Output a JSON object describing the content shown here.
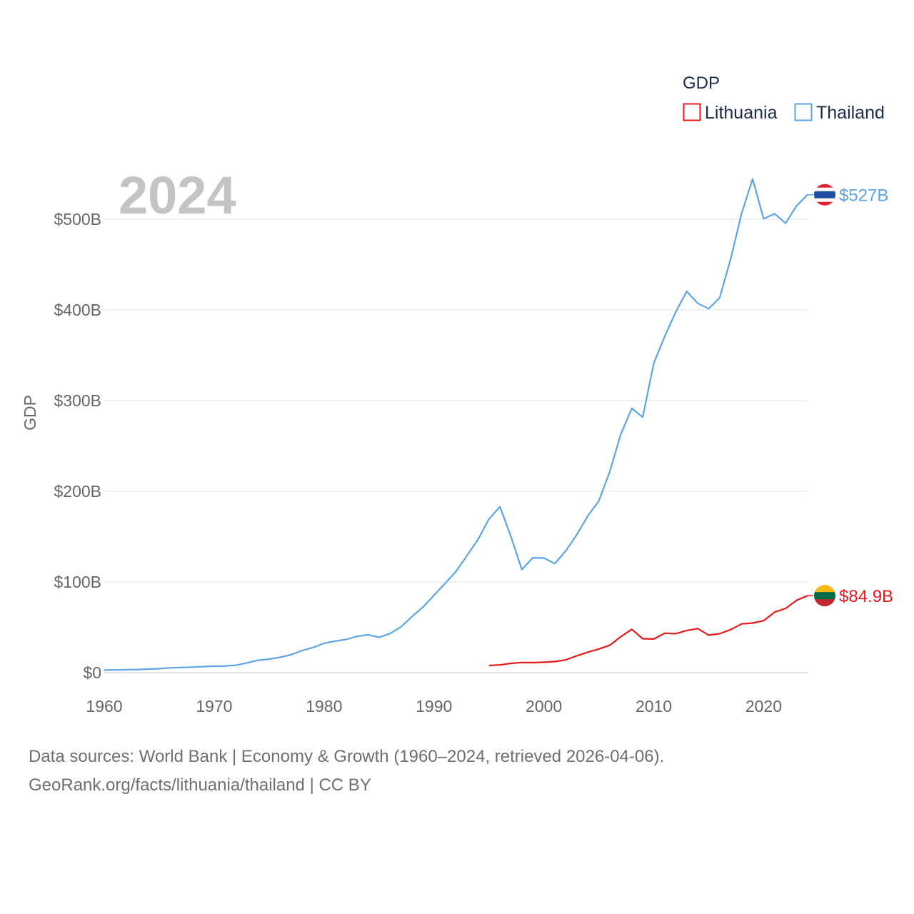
{
  "chart_data": {
    "type": "line",
    "current_year_label": "2024",
    "legend": {
      "title": "GDP",
      "items": [
        "Lithuania",
        "Thailand"
      ]
    },
    "ylabel": "GDP",
    "xlabel": "",
    "xlim": [
      1960,
      2024
    ],
    "ylim": [
      0,
      570
    ],
    "x_ticks": [
      1960,
      1970,
      1980,
      1990,
      2000,
      2010,
      2020
    ],
    "y_ticks": [
      {
        "value": 0,
        "label": "$0"
      },
      {
        "value": 100,
        "label": "$100B"
      },
      {
        "value": 200,
        "label": "$200B"
      },
      {
        "value": 300,
        "label": "$300B"
      },
      {
        "value": 400,
        "label": "$400B"
      },
      {
        "value": 500,
        "label": "$500B"
      }
    ],
    "units": "billions of US dollars",
    "series": [
      {
        "name": "Thailand",
        "color": "#5ea4e4",
        "end_label": "$527B",
        "flag_colors": [
          "#e0202a",
          "#ffffff",
          "#1e4fa3",
          "#ffffff",
          "#e0202a"
        ],
        "x": [
          1960,
          1961,
          1962,
          1963,
          1964,
          1965,
          1966,
          1967,
          1968,
          1969,
          1970,
          1971,
          1972,
          1973,
          1974,
          1975,
          1976,
          1977,
          1978,
          1979,
          1980,
          1981,
          1982,
          1983,
          1984,
          1985,
          1986,
          1987,
          1988,
          1989,
          1990,
          1991,
          1992,
          1993,
          1994,
          1995,
          1996,
          1997,
          1998,
          1999,
          2000,
          2001,
          2002,
          2003,
          2004,
          2005,
          2006,
          2007,
          2008,
          2009,
          2010,
          2011,
          2012,
          2013,
          2014,
          2015,
          2016,
          2017,
          2018,
          2019,
          2020,
          2021,
          2022,
          2023,
          2024
        ],
        "values": [
          2.8,
          3.0,
          3.3,
          3.5,
          3.9,
          4.4,
          5.3,
          5.7,
          6.1,
          6.7,
          7.1,
          7.4,
          8.2,
          10.8,
          13.7,
          14.9,
          16.9,
          19.8,
          24.3,
          27.7,
          32.4,
          34.8,
          36.6,
          40.0,
          41.8,
          38.9,
          43.1,
          50.5,
          61.7,
          72.3,
          85.3,
          98.2,
          111.5,
          128.9,
          146.7,
          169.3,
          183.0,
          150.2,
          113.7,
          126.7,
          126.4,
          120.3,
          134.3,
          152.3,
          172.9,
          189.3,
          221.8,
          262.9,
          291.4,
          281.7,
          341.1,
          370.8,
          397.6,
          420.5,
          407.3,
          401.3,
          413.4,
          456.4,
          506.8,
          544.3,
          500.5,
          506.0,
          495.6,
          514.9,
          527.0
        ]
      },
      {
        "name": "Lithuania",
        "color": "#e8191b",
        "end_label": "$84.9B",
        "flag_colors": [
          "#fdb913",
          "#006a44",
          "#c1272d"
        ],
        "x": [
          1995,
          1996,
          1997,
          1998,
          1999,
          2000,
          2001,
          2002,
          2003,
          2004,
          2005,
          2006,
          2007,
          2008,
          2009,
          2010,
          2011,
          2012,
          2013,
          2014,
          2015,
          2016,
          2017,
          2018,
          2019,
          2020,
          2021,
          2022,
          2023,
          2024
        ],
        "values": [
          7.9,
          8.5,
          10.2,
          11.2,
          11.0,
          11.5,
          12.2,
          14.1,
          18.6,
          22.6,
          26.1,
          30.2,
          39.7,
          47.8,
          37.4,
          37.1,
          43.5,
          42.9,
          46.5,
          48.6,
          41.4,
          42.9,
          47.5,
          53.8,
          54.7,
          57.3,
          66.8,
          70.9,
          79.8,
          84.9
        ]
      }
    ]
  },
  "footer": {
    "line1": "Data sources: World Bank | Economy & Growth (1960–2024, retrieved 2026-04-06).",
    "line2": "GeoRank.org/facts/lithuania/thailand | CC BY"
  }
}
